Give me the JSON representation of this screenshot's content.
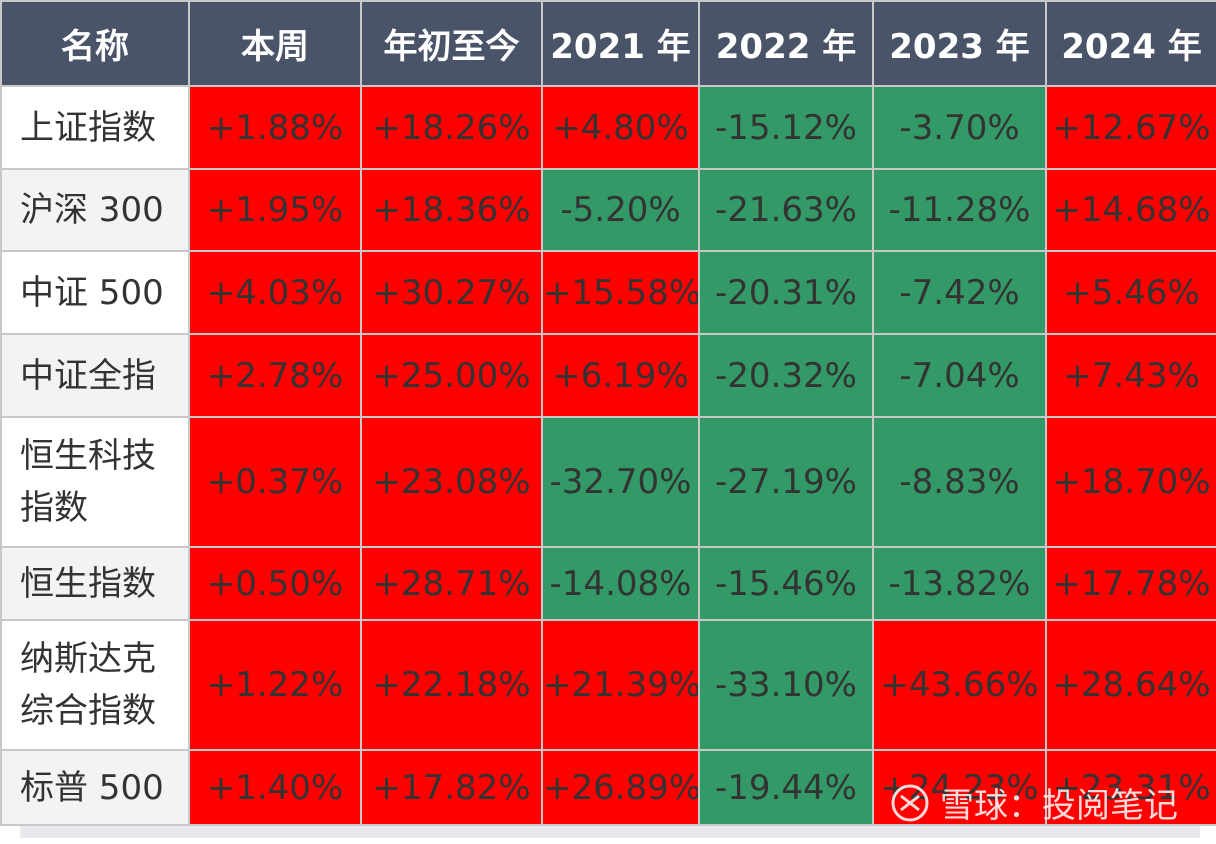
{
  "table": {
    "header": [
      "名称",
      "本周",
      "年初至今",
      "2021 年",
      "2022 年",
      "2023 年",
      "2024 年"
    ],
    "rows": [
      [
        "上证指数",
        "+1.88%",
        "+18.26%",
        "+4.80%",
        "-15.12%",
        "-3.70%",
        "+12.67%"
      ],
      [
        "沪深 300",
        "+1.95%",
        "+18.36%",
        "-5.20%",
        "-21.63%",
        "-11.28%",
        "+14.68%"
      ],
      [
        "中证 500",
        "+4.03%",
        "+30.27%",
        "+15.58%",
        "-20.31%",
        "-7.42%",
        "+5.46%"
      ],
      [
        "中证全指",
        "+2.78%",
        "+25.00%",
        "+6.19%",
        "-20.32%",
        "-7.04%",
        "+7.43%"
      ],
      [
        "恒生科技指数",
        "+0.37%",
        "+23.08%",
        "-32.70%",
        "-27.19%",
        "-8.83%",
        "+18.70%"
      ],
      [
        "恒生指数",
        "+0.50%",
        "+28.71%",
        "-14.08%",
        "-15.46%",
        "-13.82%",
        "+17.78%"
      ],
      [
        "纳斯达克综合指数",
        "+1.22%",
        "+22.18%",
        "+21.39%",
        "-33.10%",
        "+43.66%",
        "+28.64%"
      ],
      [
        "标普 500",
        "+1.40%",
        "+17.82%",
        "+26.89%",
        "-19.44%",
        "+24.23%",
        "+23.31%"
      ]
    ]
  },
  "watermark": "雪球：投阅笔记"
}
